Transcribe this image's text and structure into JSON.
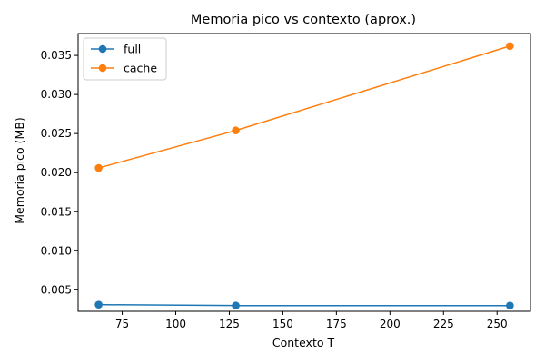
{
  "chart_data": {
    "type": "line",
    "title": "Memoria pico vs contexto (aprox.)",
    "xlabel": "Contexto T",
    "ylabel": "Memoria pico (MB)",
    "x": [
      64,
      128,
      256
    ],
    "xlim": [
      54.4,
      265.6
    ],
    "ylim": [
      0.00225,
      0.0378
    ],
    "xticks": [
      75,
      100,
      125,
      150,
      175,
      200,
      225,
      250
    ],
    "xtick_labels": [
      "75",
      "100",
      "125",
      "150",
      "175",
      "200",
      "225",
      "250"
    ],
    "yticks": [
      0.005,
      0.01,
      0.015,
      0.02,
      0.025,
      0.03,
      0.035
    ],
    "ytick_labels": [
      "0.005",
      "0.010",
      "0.015",
      "0.020",
      "0.025",
      "0.030",
      "0.035"
    ],
    "grid": false,
    "legend_position": "upper-left",
    "series": [
      {
        "name": "full",
        "color": "#1f77b4",
        "values": [
          0.0031,
          0.00298,
          0.00298
        ]
      },
      {
        "name": "cache",
        "color": "#ff7f0e",
        "values": [
          0.0206,
          0.0254,
          0.0362
        ]
      }
    ]
  }
}
